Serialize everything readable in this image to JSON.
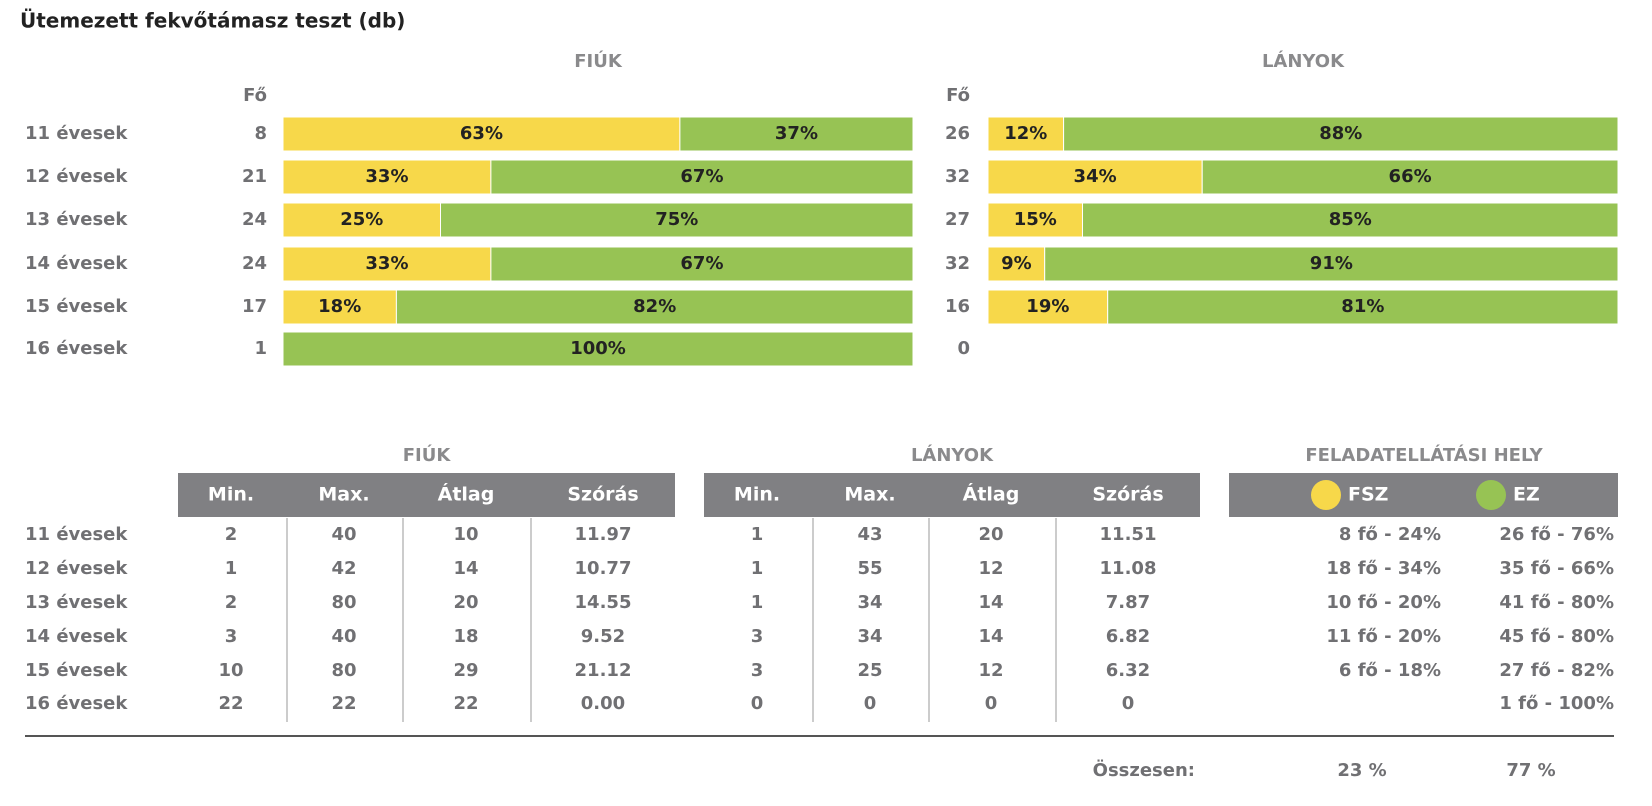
{
  "title": "Ütemezett fekvőtámasz teszt (db)",
  "bars": {
    "count_label": "Fő",
    "categories": [
      "11 évesek",
      "12 évesek",
      "13 évesek",
      "14 évesek",
      "15 évesek",
      "16 évesek"
    ],
    "colors": [
      "#f7d84a",
      "#97c354"
    ],
    "groups": [
      {
        "title": "FIÚK",
        "counts": [
          8,
          21,
          24,
          24,
          17,
          1
        ],
        "values": [
          [
            63,
            37
          ],
          [
            33,
            67
          ],
          [
            25,
            75
          ],
          [
            33,
            67
          ],
          [
            18,
            82
          ],
          [
            null,
            100
          ]
        ],
        "value_labels": [
          [
            "63%",
            "37%"
          ],
          [
            "33%",
            "67%"
          ],
          [
            "25%",
            "75%"
          ],
          [
            "33%",
            "67%"
          ],
          [
            "18%",
            "82%"
          ],
          [
            null,
            "100%"
          ]
        ]
      },
      {
        "title": "LÁNYOK",
        "counts": [
          26,
          32,
          27,
          32,
          16,
          0
        ],
        "values": [
          [
            12,
            88
          ],
          [
            34,
            66
          ],
          [
            15,
            85
          ],
          [
            9,
            91
          ],
          [
            19,
            81
          ],
          [
            null,
            null
          ]
        ],
        "value_labels": [
          [
            "12%",
            "88%"
          ],
          [
            "34%",
            "66%"
          ],
          [
            "15%",
            "85%"
          ],
          [
            "9%",
            "91%"
          ],
          [
            "19%",
            "81%"
          ],
          [
            null,
            null
          ]
        ]
      }
    ]
  },
  "table": {
    "row_labels": [
      "11 évesek",
      "12 évesek",
      "13 évesek",
      "14 évesek",
      "15 évesek",
      "16 évesek"
    ],
    "groups": [
      {
        "title": "FIÚK",
        "columns": [
          "Min.",
          "Max.",
          "Átlag",
          "Szórás"
        ],
        "rows": [
          [
            "2",
            "40",
            "10",
            "11.97"
          ],
          [
            "1",
            "42",
            "14",
            "10.77"
          ],
          [
            "2",
            "80",
            "20",
            "14.55"
          ],
          [
            "3",
            "40",
            "18",
            "9.52"
          ],
          [
            "10",
            "80",
            "29",
            "21.12"
          ],
          [
            "22",
            "22",
            "22",
            "0.00"
          ]
        ]
      },
      {
        "title": "LÁNYOK",
        "columns": [
          "Min.",
          "Max.",
          "Átlag",
          "Szórás"
        ],
        "rows": [
          [
            "1",
            "43",
            "20",
            "11.51"
          ],
          [
            "1",
            "55",
            "12",
            "11.08"
          ],
          [
            "1",
            "34",
            "14",
            "7.87"
          ],
          [
            "3",
            "34",
            "14",
            "6.82"
          ],
          [
            "3",
            "25",
            "12",
            "6.32"
          ],
          [
            "0",
            "0",
            "0",
            "0"
          ]
        ]
      }
    ],
    "location": {
      "title": "FELADATELLÁTÁSI HELY",
      "legend": [
        "FSZ",
        "EZ"
      ],
      "rows": [
        [
          "8 fő - 24%",
          "26 fő - 76%"
        ],
        [
          "18 fő - 34%",
          "35 fő - 66%"
        ],
        [
          "10 fő - 20%",
          "41 fő - 80%"
        ],
        [
          "11 fő - 20%",
          "45 fő - 80%"
        ],
        [
          "6 fő - 18%",
          "27 fő - 82%"
        ],
        [
          null,
          "1 fő - 100%"
        ]
      ]
    },
    "total": {
      "label": "Összesen:",
      "values": [
        "23 %",
        "77 %"
      ]
    }
  }
}
